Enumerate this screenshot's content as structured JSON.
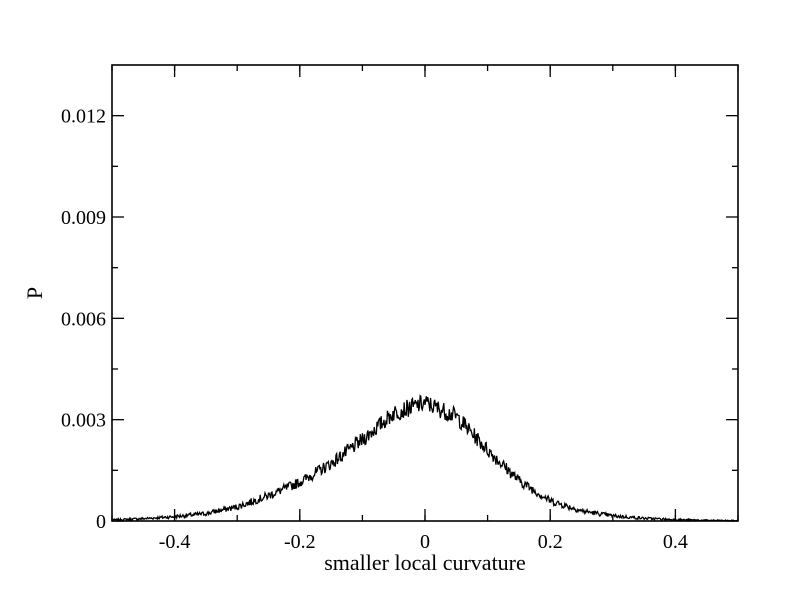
{
  "chart_data": {
    "type": "line",
    "title": "",
    "xlabel": "smaller local curvature",
    "ylabel": "P",
    "xlim": [
      -0.5,
      0.5
    ],
    "ylim": [
      0,
      0.0135
    ],
    "grid": false,
    "legend": "none",
    "line_color": "#000000",
    "x_ticks": [
      {
        "value": -0.4,
        "label": "-0.4"
      },
      {
        "value": -0.2,
        "label": "-0.2"
      },
      {
        "value": 0,
        "label": "0"
      },
      {
        "value": 0.2,
        "label": "0.2"
      },
      {
        "value": 0.4,
        "label": "0.4"
      }
    ],
    "y_ticks": [
      {
        "value": 0,
        "label": "0"
      },
      {
        "value": 0.003,
        "label": "0.003"
      },
      {
        "value": 0.006,
        "label": "0.006"
      },
      {
        "value": 0.009,
        "label": "0.009"
      },
      {
        "value": 0.012,
        "label": "0.012"
      }
    ],
    "x": [
      -0.5,
      -0.45,
      -0.4,
      -0.35,
      -0.3,
      -0.25,
      -0.2,
      -0.15,
      -0.1,
      -0.05,
      0,
      0.05,
      0.1,
      0.15,
      0.2,
      0.25,
      0.3,
      0.35,
      0.4,
      0.45,
      0.5
    ],
    "y": [
      3e-05,
      7e-05,
      0.00013,
      0.00022,
      0.00042,
      0.00075,
      0.00115,
      0.0017,
      0.0024,
      0.0032,
      0.0035,
      0.0031,
      0.0021,
      0.0012,
      0.0006,
      0.0003,
      0.00015,
      8e-05,
      4e-05,
      2e-05,
      1e-05
    ]
  }
}
